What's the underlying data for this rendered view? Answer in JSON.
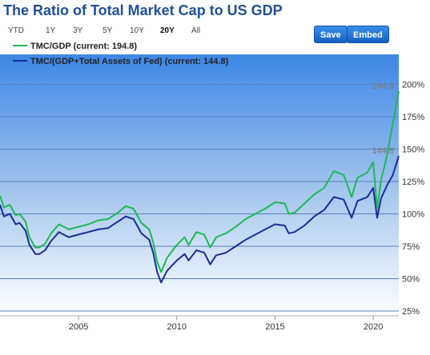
{
  "title": "The Ratio of Total Market Cap to US GDP",
  "range_buttons": [
    {
      "label": "YTD",
      "active": false
    },
    {
      "label": "1Y",
      "active": false
    },
    {
      "label": "3Y",
      "active": false
    },
    {
      "label": "5Y",
      "active": false
    },
    {
      "label": "10Y",
      "active": false
    },
    {
      "label": "20Y",
      "active": true
    },
    {
      "label": "All",
      "active": false
    }
  ],
  "buttons": {
    "save": "Save",
    "embed": "Embed"
  },
  "chart_data": {
    "type": "line",
    "x_ticks": [
      "2005",
      "2010",
      "2015",
      "2020"
    ],
    "y_ticks": [
      "25%",
      "50%",
      "75%",
      "100%",
      "125%",
      "150%",
      "175%",
      "200%"
    ],
    "xlim": [
      2001.0,
      2021.3
    ],
    "ylim": [
      25,
      210
    ],
    "grid": true,
    "legend_position": "top-left",
    "series": [
      {
        "name": "TMC/GDP (current: 194.8)",
        "color": "#1db954",
        "end_label": "194.8",
        "points": [
          [
            2001.0,
            114
          ],
          [
            2001.2,
            105
          ],
          [
            2001.5,
            107
          ],
          [
            2001.8,
            99
          ],
          [
            2002.0,
            100
          ],
          [
            2002.3,
            94
          ],
          [
            2002.5,
            82
          ],
          [
            2002.8,
            74
          ],
          [
            2003.0,
            74
          ],
          [
            2003.3,
            77
          ],
          [
            2003.6,
            85
          ],
          [
            2004.0,
            92
          ],
          [
            2004.5,
            88
          ],
          [
            2005.0,
            90
          ],
          [
            2005.5,
            92
          ],
          [
            2006.0,
            95
          ],
          [
            2006.5,
            96
          ],
          [
            2007.0,
            101
          ],
          [
            2007.4,
            106
          ],
          [
            2007.8,
            104
          ],
          [
            2008.2,
            93
          ],
          [
            2008.6,
            88
          ],
          [
            2008.8,
            78
          ],
          [
            2009.0,
            63
          ],
          [
            2009.2,
            55
          ],
          [
            2009.5,
            66
          ],
          [
            2010.0,
            76
          ],
          [
            2010.4,
            82
          ],
          [
            2010.6,
            76
          ],
          [
            2011.0,
            86
          ],
          [
            2011.4,
            84
          ],
          [
            2011.7,
            74
          ],
          [
            2012.0,
            82
          ],
          [
            2012.5,
            85
          ],
          [
            2013.0,
            90
          ],
          [
            2013.5,
            96
          ],
          [
            2014.0,
            100
          ],
          [
            2014.5,
            104
          ],
          [
            2015.0,
            109
          ],
          [
            2015.5,
            108
          ],
          [
            2015.7,
            100
          ],
          [
            2016.0,
            101
          ],
          [
            2016.5,
            108
          ],
          [
            2017.0,
            115
          ],
          [
            2017.5,
            120
          ],
          [
            2018.0,
            133
          ],
          [
            2018.5,
            130
          ],
          [
            2018.9,
            113
          ],
          [
            2019.2,
            128
          ],
          [
            2019.7,
            132
          ],
          [
            2020.0,
            140
          ],
          [
            2020.2,
            104
          ],
          [
            2020.4,
            126
          ],
          [
            2020.7,
            145
          ],
          [
            2021.0,
            170
          ],
          [
            2021.3,
            194.8
          ]
        ]
      },
      {
        "name": "TMC/(GDP+Total Assets of Fed) (current: 144.8)",
        "color": "#1a2b9e",
        "end_label": "144.8",
        "points": [
          [
            2001.0,
            107
          ],
          [
            2001.2,
            98
          ],
          [
            2001.5,
            100
          ],
          [
            2001.8,
            92
          ],
          [
            2002.0,
            93
          ],
          [
            2002.3,
            87
          ],
          [
            2002.5,
            76
          ],
          [
            2002.8,
            69
          ],
          [
            2003.0,
            69
          ],
          [
            2003.3,
            72
          ],
          [
            2003.6,
            79
          ],
          [
            2004.0,
            86
          ],
          [
            2004.5,
            82
          ],
          [
            2005.0,
            84
          ],
          [
            2005.5,
            86
          ],
          [
            2006.0,
            88
          ],
          [
            2006.5,
            89
          ],
          [
            2007.0,
            94
          ],
          [
            2007.4,
            98
          ],
          [
            2007.8,
            96
          ],
          [
            2008.2,
            85
          ],
          [
            2008.6,
            80
          ],
          [
            2008.8,
            70
          ],
          [
            2009.0,
            55
          ],
          [
            2009.2,
            47
          ],
          [
            2009.5,
            56
          ],
          [
            2010.0,
            64
          ],
          [
            2010.4,
            69
          ],
          [
            2010.6,
            64
          ],
          [
            2011.0,
            72
          ],
          [
            2011.4,
            70
          ],
          [
            2011.7,
            61
          ],
          [
            2012.0,
            68
          ],
          [
            2012.5,
            70
          ],
          [
            2013.0,
            75
          ],
          [
            2013.5,
            80
          ],
          [
            2014.0,
            84
          ],
          [
            2014.5,
            88
          ],
          [
            2015.0,
            92
          ],
          [
            2015.5,
            91
          ],
          [
            2015.7,
            85
          ],
          [
            2016.0,
            86
          ],
          [
            2016.5,
            91
          ],
          [
            2017.0,
            98
          ],
          [
            2017.5,
            103
          ],
          [
            2018.0,
            113
          ],
          [
            2018.5,
            111
          ],
          [
            2018.9,
            97
          ],
          [
            2019.2,
            110
          ],
          [
            2019.7,
            113
          ],
          [
            2020.0,
            120
          ],
          [
            2020.2,
            97
          ],
          [
            2020.4,
            112
          ],
          [
            2020.7,
            122
          ],
          [
            2021.0,
            130
          ],
          [
            2021.3,
            144.8
          ]
        ]
      }
    ]
  }
}
